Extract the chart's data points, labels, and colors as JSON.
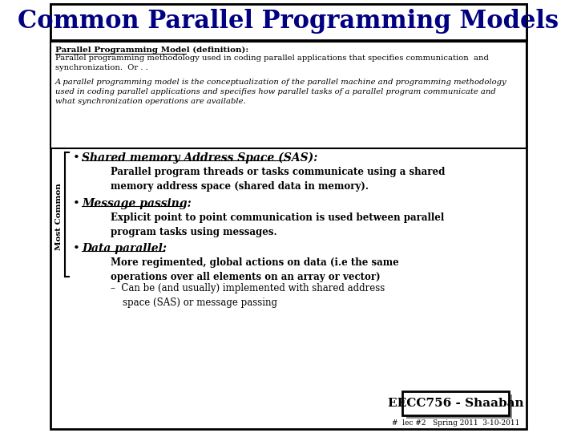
{
  "title": "Common Parallel Programming Models",
  "bg_color": "#ffffff",
  "border_color": "#000000",
  "title_color": "#000080",
  "title_fontsize": 22,
  "def_heading": "Parallel Programming Model (definition):",
  "def_text1": "Parallel programming methodology used in coding parallel applications that specifies communication  and\nsynchronization.  Or . .",
  "def_text2": "A parallel programming model is the conceptualization of the parallel machine and programming methodology\nused in coding parallel applications and specifies how parallel tasks of a parallel program communicate and\nwhat synchronization operations are available.",
  "bullet1_title": "Shared memory Address Space (SAS):",
  "bullet1_body": "Parallel program threads or tasks communicate using a shared\nmemory address space (shared data in memory).",
  "bullet2_title": "Message passing:",
  "bullet2_body": "Explicit point to point communication is used between parallel\nprogram tasks using messages.",
  "bullet3_title": "Data parallel:",
  "bullet3_body1": "More regimented, global actions on data (i.e the same\noperations over all elements on an array or vector)",
  "bullet3_body2": "–  Can be (and usually) implemented with shared address\n    space (SAS) or message passing",
  "side_label": "Most Common",
  "footer_box": "EECC756 - Shaaban",
  "footer_text": "#  lec #2   Spring 2011  3-10-2011"
}
